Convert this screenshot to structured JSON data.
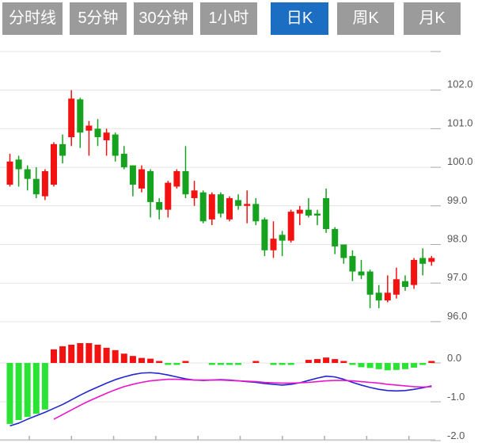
{
  "toolbar": {
    "tabs": [
      {
        "label": "分时线",
        "active": false
      },
      {
        "label": "5分钟",
        "active": false
      },
      {
        "label": "30分钟",
        "active": false
      },
      {
        "label": "1小时",
        "active": false
      },
      {
        "label": "日K",
        "active": true
      },
      {
        "label": "周K",
        "active": false
      },
      {
        "label": "月K",
        "active": false
      }
    ],
    "active_color": "#1b6ec2",
    "inactive_color": "#9b9b9b"
  },
  "chart_data": [
    {
      "type": "candlestick",
      "timeframe": "日K",
      "grid": true,
      "y_axis": {
        "min": 96,
        "max": 103,
        "tick_step": 1,
        "tick_labels": [
          "102.0",
          "101.0",
          "100.0",
          "99.0",
          "98.0",
          "97.0",
          "96.0"
        ],
        "tick_values": [
          102,
          101,
          100,
          99,
          98,
          97,
          96
        ]
      },
      "colors": {
        "up": "#f21212",
        "down": "#16a11e"
      },
      "candles_ohlc": [
        [
          99.55,
          100.35,
          99.5,
          100.15
        ],
        [
          100.2,
          100.3,
          99.5,
          99.95
        ],
        [
          99.95,
          100.05,
          99.4,
          99.7
        ],
        [
          99.7,
          100.0,
          99.2,
          99.3
        ],
        [
          99.25,
          99.95,
          99.15,
          99.9
        ],
        [
          99.55,
          100.65,
          99.5,
          100.6
        ],
        [
          100.6,
          100.85,
          100.1,
          100.3
        ],
        [
          100.78,
          102.0,
          100.55,
          101.78
        ],
        [
          101.76,
          101.8,
          100.5,
          100.9
        ],
        [
          100.95,
          101.2,
          100.3,
          101.08
        ],
        [
          101.0,
          101.25,
          100.55,
          100.78
        ],
        [
          100.7,
          101.0,
          100.3,
          100.9
        ],
        [
          100.85,
          100.9,
          100.15,
          100.3
        ],
        [
          100.35,
          100.55,
          99.95,
          100.0
        ],
        [
          100.05,
          100.05,
          99.25,
          99.55
        ],
        [
          99.45,
          100.05,
          99.35,
          99.95
        ],
        [
          99.9,
          99.95,
          98.7,
          99.1
        ],
        [
          99.1,
          99.2,
          98.65,
          98.9
        ],
        [
          98.9,
          99.65,
          98.7,
          99.6
        ],
        [
          99.5,
          99.95,
          99.45,
          99.9
        ],
        [
          99.9,
          100.55,
          99.2,
          99.3
        ],
        [
          99.2,
          99.65,
          99.0,
          99.4
        ],
        [
          99.35,
          99.4,
          98.55,
          98.6
        ],
        [
          98.65,
          99.35,
          98.5,
          99.3
        ],
        [
          99.3,
          99.35,
          98.7,
          98.8
        ],
        [
          98.65,
          99.25,
          98.6,
          99.2
        ],
        [
          99.15,
          99.3,
          98.9,
          99.0
        ],
        [
          99.0,
          99.4,
          98.55,
          99.05
        ],
        [
          99.05,
          99.2,
          98.5,
          98.6
        ],
        [
          98.65,
          98.7,
          97.7,
          97.85
        ],
        [
          97.85,
          98.6,
          97.65,
          98.15
        ],
        [
          98.25,
          98.35,
          97.7,
          98.1
        ],
        [
          98.1,
          98.9,
          98.05,
          98.85
        ],
        [
          98.8,
          99.0,
          98.5,
          98.9
        ],
        [
          98.9,
          99.2,
          98.7,
          98.75
        ],
        [
          98.8,
          98.9,
          98.5,
          98.75
        ],
        [
          99.2,
          99.45,
          98.3,
          98.4
        ],
        [
          98.4,
          98.45,
          97.75,
          97.95
        ],
        [
          98.0,
          98.0,
          97.5,
          97.65
        ],
        [
          97.7,
          97.85,
          97.05,
          97.3
        ],
        [
          97.3,
          97.6,
          97.1,
          97.2
        ],
        [
          97.3,
          97.35,
          96.35,
          96.7
        ],
        [
          96.75,
          96.95,
          96.35,
          96.55
        ],
        [
          96.55,
          97.2,
          96.5,
          96.75
        ],
        [
          96.7,
          97.4,
          96.6,
          97.1
        ],
        [
          97.05,
          97.2,
          96.8,
          96.9
        ],
        [
          96.95,
          97.65,
          96.85,
          97.6
        ],
        [
          97.65,
          97.9,
          97.2,
          97.5
        ],
        [
          97.55,
          97.7,
          97.45,
          97.65
        ]
      ]
    },
    {
      "type": "macd",
      "y_axis": {
        "tick_labels": [
          "0.0",
          "-1.0",
          "-2.0"
        ],
        "tick_values": [
          0,
          -1,
          -2
        ]
      },
      "colors": {
        "hist_pos": "#f21212",
        "hist_neg": "#2be335",
        "dif": "#2126d2",
        "dea": "#ea15c9"
      },
      "histogram": [
        -1.57,
        -1.47,
        -1.39,
        -1.31,
        -1.2,
        0.35,
        0.43,
        0.47,
        0.51,
        0.51,
        0.47,
        0.39,
        0.33,
        0.24,
        0.18,
        0.13,
        0.11,
        0.04,
        -0.03,
        -0.03,
        0.02,
        0,
        0,
        -0.02,
        -0.02,
        -0.02,
        -0.03,
        0,
        0.03,
        0,
        -0.03,
        -0.03,
        -0.03,
        0,
        0.08,
        0.1,
        0.14,
        0.1,
        0.05,
        -0.03,
        -0.11,
        -0.13,
        -0.16,
        -0.19,
        -0.18,
        -0.16,
        -0.12,
        -0.05,
        0.03
      ],
      "dif": [
        -1.62,
        -1.55,
        -1.45,
        -1.36,
        -1.27,
        -1.17,
        -1.07,
        -0.95,
        -0.83,
        -0.72,
        -0.62,
        -0.52,
        -0.43,
        -0.36,
        -0.3,
        -0.26,
        -0.25,
        -0.27,
        -0.31,
        -0.36,
        -0.41,
        -0.44,
        -0.45,
        -0.44,
        -0.43,
        -0.44,
        -0.46,
        -0.48,
        -0.5,
        -0.53,
        -0.55,
        -0.57,
        -0.55,
        -0.51,
        -0.45,
        -0.39,
        -0.34,
        -0.36,
        -0.42,
        -0.5,
        -0.57,
        -0.63,
        -0.68,
        -0.71,
        -0.72,
        -0.71,
        -0.68,
        -0.64,
        -0.59
      ],
      "dea": [
        null,
        null,
        null,
        null,
        null,
        -1.45,
        -1.33,
        -1.21,
        -1.09,
        -0.98,
        -0.88,
        -0.78,
        -0.69,
        -0.61,
        -0.55,
        -0.5,
        -0.46,
        -0.44,
        -0.42,
        -0.42,
        -0.43,
        -0.44,
        -0.44,
        -0.44,
        -0.44,
        -0.45,
        -0.46,
        -0.47,
        -0.48,
        -0.5,
        -0.51,
        -0.52,
        -0.52,
        -0.51,
        -0.5,
        -0.48,
        -0.46,
        -0.45,
        -0.45,
        -0.46,
        -0.48,
        -0.5,
        -0.52,
        -0.55,
        -0.57,
        -0.59,
        -0.61,
        -0.62,
        -0.61
      ]
    }
  ]
}
